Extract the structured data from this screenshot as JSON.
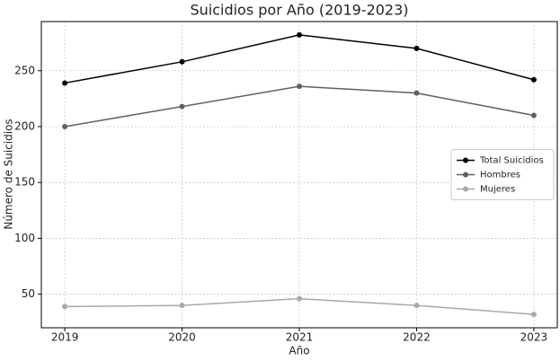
{
  "chart_data": {
    "type": "line",
    "title": "Suicidios por Año (2019-2023)",
    "x_label": "Año",
    "y_label": "Número de Suicidios",
    "x": [
      2019,
      2020,
      2021,
      2022,
      2023
    ],
    "series": [
      {
        "name": "Total Suicidios",
        "color": "#000000",
        "values": [
          239,
          258,
          282,
          270,
          242
        ]
      },
      {
        "name": "Hombres",
        "color": "#606060",
        "values": [
          200,
          218,
          236,
          230,
          210
        ]
      },
      {
        "name": "Mujeres",
        "color": "#a9a9a9",
        "values": [
          39,
          40,
          46,
          40,
          32
        ]
      }
    ],
    "xlim": [
      2018.8,
      2023.2
    ],
    "xticks": [
      2019,
      2020,
      2021,
      2022,
      2023
    ],
    "ylim": [
      20,
      294
    ],
    "yticks": [
      50,
      100,
      150,
      200,
      250
    ],
    "grid": true,
    "legend": "center right"
  }
}
